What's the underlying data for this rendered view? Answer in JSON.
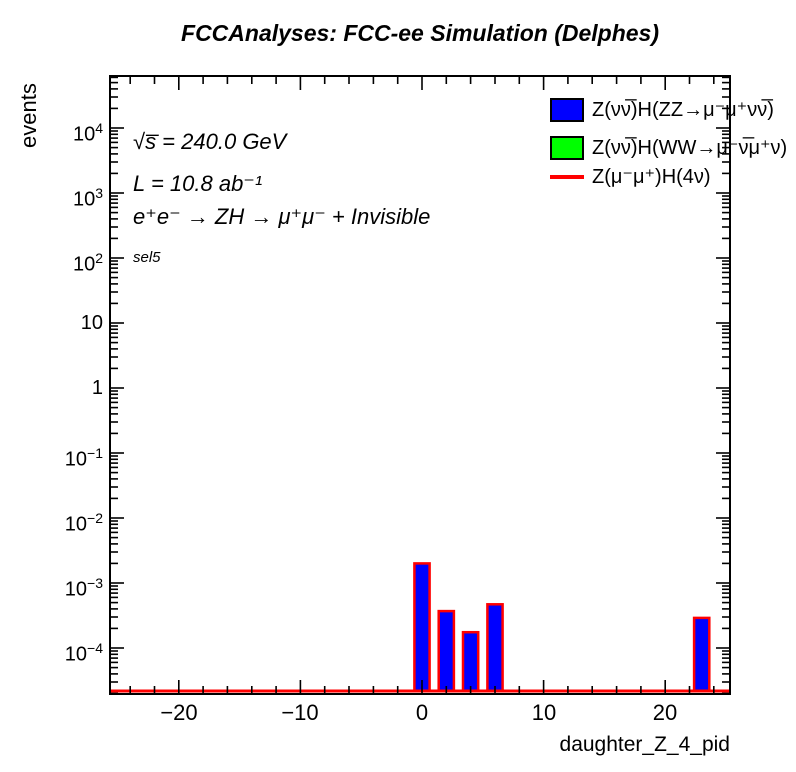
{
  "title": "FCCAnalyses: FCC-ee Simulation (Delphes)",
  "annotations": {
    "sqrt_s": "√s̅ = 240.0 GeV",
    "lumi": "L = 10.8 ab⁻¹",
    "process": "e⁺e⁻ → ZH → μ⁺μ⁻ + Invisible",
    "selection": "sel5"
  },
  "legend": [
    {
      "label": "Z(νν̅)H(ZZ→μ⁻μ⁺νν̅)",
      "swatch": "box",
      "color": "#0000ff"
    },
    {
      "label": "Z(νν̅)H(WW→μ⁻ν̅μ⁺ν)",
      "swatch": "box",
      "color": "#00ff00"
    },
    {
      "label": "Z(μ⁻μ⁺)H(4ν)",
      "swatch": "line",
      "color": "#ff0000"
    }
  ],
  "axes": {
    "x": {
      "title": "daughter_Z_4_pid",
      "min": -25.6,
      "max": 25.3,
      "major_ticks": [
        -20,
        -10,
        0,
        10,
        20
      ],
      "major_labels": [
        "−20",
        "−10",
        "0",
        "10",
        "20"
      ],
      "minor_step": 2
    },
    "y": {
      "title": "events",
      "scale": "log",
      "min": 2e-05,
      "max": 63000,
      "ticks": [
        {
          "value": 10000,
          "base": "10",
          "exp": "4"
        },
        {
          "value": 1000,
          "base": "10",
          "exp": "3"
        },
        {
          "value": 100,
          "base": "10",
          "exp": "2"
        },
        {
          "value": 10,
          "base": "10",
          "exp": ""
        },
        {
          "value": 1,
          "base": "1",
          "exp": ""
        },
        {
          "value": 0.1,
          "base": "10",
          "exp": "−1"
        },
        {
          "value": 0.01,
          "base": "10",
          "exp": "−2"
        },
        {
          "value": 0.001,
          "base": "10",
          "exp": "−3"
        },
        {
          "value": 0.0001,
          "base": "10",
          "exp": "−4"
        }
      ]
    }
  },
  "chart_data": {
    "type": "bar",
    "title": "FCCAnalyses: FCC-ee Simulation (Delphes)",
    "xlabel": "daughter_Z_4_pid",
    "ylabel": "events",
    "xlim": [
      -25.6,
      25.3
    ],
    "ylim": [
      2e-05,
      63000
    ],
    "yscale": "log",
    "grid": false,
    "legend_position": "top-right",
    "bar_width": 1.25,
    "frame_color": "#000000",
    "series": [
      {
        "name": "Z(νν̅)H(ZZ→μ⁻μ⁺νν̅)",
        "type": "bar",
        "fill_color": "#0000ff",
        "line_color": "#ff0000",
        "points": [
          {
            "x": 0,
            "y": 0.002
          },
          {
            "x": 2,
            "y": 0.00037
          },
          {
            "x": 4,
            "y": 0.000175
          },
          {
            "x": 6,
            "y": 0.00047
          },
          {
            "x": 23,
            "y": 0.00029
          }
        ]
      },
      {
        "name": "Z(νν̅)H(WW→μ⁻ν̅μ⁺ν)",
        "type": "bar",
        "fill_color": "#00ff00",
        "line_color": "#00ff00",
        "points": []
      },
      {
        "name": "Z(μ⁻μ⁺)H(4ν)",
        "type": "line",
        "line_color": "#ff0000",
        "baseline": true,
        "points": []
      }
    ]
  }
}
